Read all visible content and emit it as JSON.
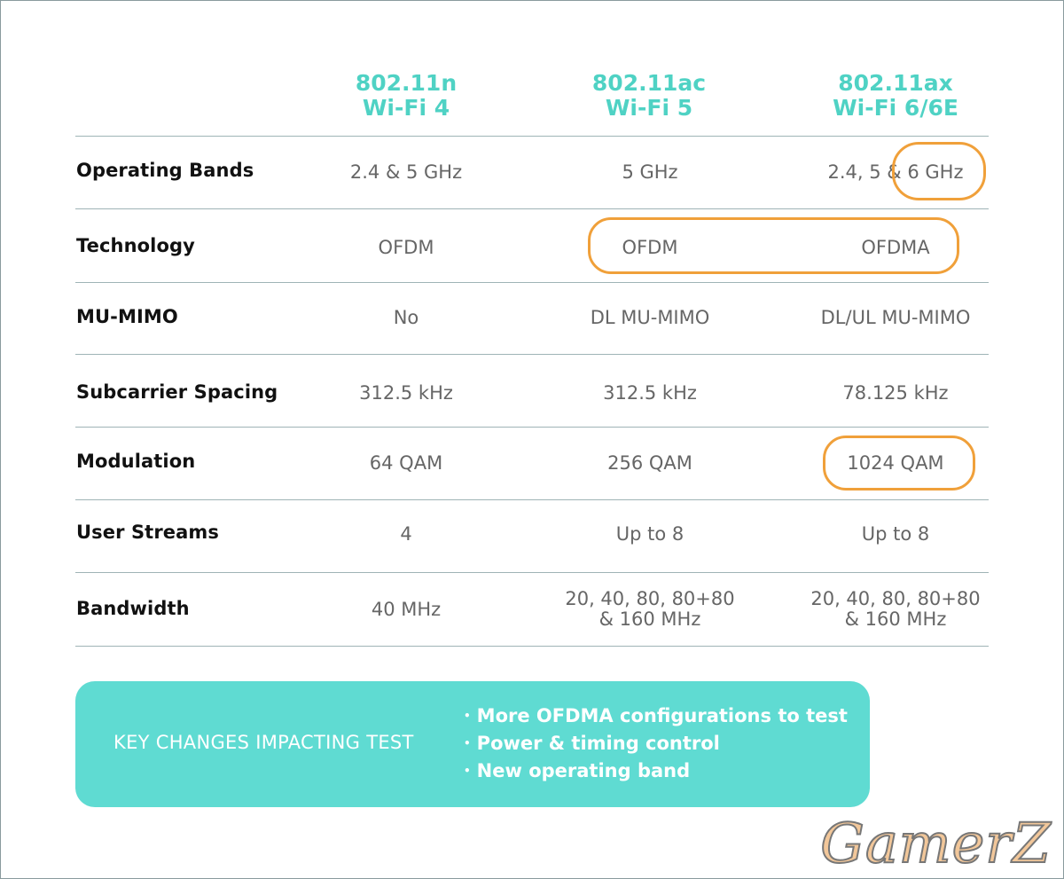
{
  "columns": [
    {
      "standard": "802.11n",
      "name": "Wi-Fi 4"
    },
    {
      "standard": "802.11ac",
      "name": "Wi-Fi 5"
    },
    {
      "standard": "802.11ax",
      "name": "Wi-Fi 6/6E"
    }
  ],
  "rows": [
    {
      "label": "Operating Bands",
      "values": [
        "2.4 & 5 GHz",
        "5 GHz",
        "2.4, 5 & 6 GHz"
      ]
    },
    {
      "label": "Technology",
      "values": [
        "OFDM",
        "OFDM",
        "OFDMA"
      ]
    },
    {
      "label": "MU-MIMO",
      "values": [
        "No",
        "DL MU-MIMO",
        "DL/UL MU-MIMO"
      ]
    },
    {
      "label": "Subcarrier Spacing",
      "values": [
        "312.5 kHz",
        "312.5 kHz",
        "78.125 kHz"
      ]
    },
    {
      "label": "Modulation",
      "values": [
        "64 QAM",
        "256 QAM",
        "1024 QAM"
      ]
    },
    {
      "label": "User Streams",
      "values": [
        "4",
        "Up to 8",
        "Up to 8"
      ]
    },
    {
      "label": "Bandwidth",
      "values": [
        [
          "40 MHz"
        ],
        [
          "20, 40, 80, 80+80",
          "& 160 MHz"
        ],
        [
          "20, 40, 80, 80+80",
          "& 160 MHz"
        ]
      ]
    }
  ],
  "key_changes": {
    "title": "KEY CHANGES IMPACTING TEST",
    "items": [
      "More OFDMA configurations to test",
      "Power & timing control",
      "New operating band"
    ]
  },
  "watermark": "GamerZ",
  "colors": {
    "header_accent": "#4fd2c4",
    "highlight_ring": "#f0a03a",
    "panel_bg": "#5fdbd2"
  }
}
